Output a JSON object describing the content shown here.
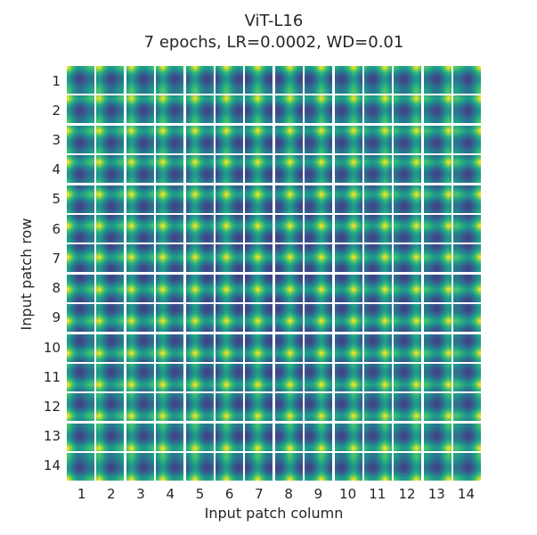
{
  "title": {
    "line1": "ViT-L16",
    "line2": "7 epochs, LR=0.0002, WD=0.01"
  },
  "axes": {
    "x_label": "Input patch column",
    "y_label": "Input patch row",
    "x_ticks": [
      "1",
      "2",
      "3",
      "4",
      "5",
      "6",
      "7",
      "8",
      "9",
      "10",
      "11",
      "12",
      "13",
      "14"
    ],
    "y_ticks": [
      "1",
      "2",
      "3",
      "4",
      "5",
      "6",
      "7",
      "8",
      "9",
      "10",
      "11",
      "12",
      "13",
      "14"
    ]
  },
  "colors": {
    "background": "#ffffff",
    "text": "#262626"
  },
  "chart_data": {
    "type": "heatmap",
    "title": "ViT-L16",
    "subtitle": "7 epochs, LR=0.0002, WD=0.01",
    "xlabel": "Input patch column",
    "ylabel": "Input patch row",
    "grid_rows": 14,
    "grid_cols": 14,
    "row_ticks": [
      1,
      2,
      3,
      4,
      5,
      6,
      7,
      8,
      9,
      10,
      11,
      12,
      13,
      14
    ],
    "col_ticks": [
      1,
      2,
      3,
      4,
      5,
      6,
      7,
      8,
      9,
      10,
      11,
      12,
      13,
      14
    ],
    "tile_resolution": 14,
    "colormap": "viridis",
    "value_range": [
      -1,
      1
    ],
    "content": "Each tile (r,c) shows the cosine similarity between the position embedding of input patch (r,c) and the embeddings of all 14x14 patches; bright yellow marks the tile's own location, dark purple-blue blobs appear ~0.45 of the grid away on each axis, with damped periodic ripples",
    "similarity_model": {
      "form": "val(u,v) = 0.5*(cd(u-uc) + cd(v-vc)), cd(d) = cos(frequency*d)*exp(-damping*|d|)",
      "frequency": 6.8,
      "damping": 1.3
    },
    "viridis_stops": [
      [
        68,
        1,
        84
      ],
      [
        72,
        40,
        120
      ],
      [
        62,
        74,
        137
      ],
      [
        49,
        104,
        142
      ],
      [
        38,
        130,
        142
      ],
      [
        31,
        158,
        137
      ],
      [
        53,
        183,
        121
      ],
      [
        109,
        205,
        89
      ],
      [
        253,
        231,
        37
      ]
    ]
  }
}
